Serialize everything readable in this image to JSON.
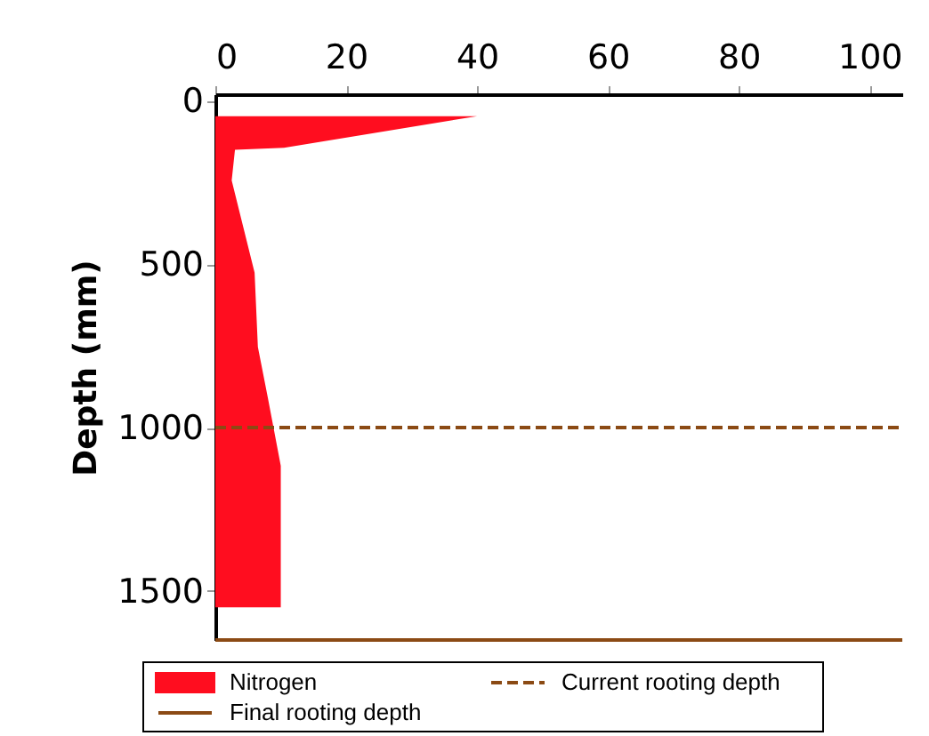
{
  "chart_data": {
    "type": "area",
    "orientation": "horizontal",
    "ylabel": "Depth (mm)",
    "x": [
      47,
      144,
      150,
      244,
      526,
      753,
      906,
      1117,
      1550
    ],
    "series": [
      {
        "name": "Nitrogen",
        "color": "#ff0d1f",
        "values": [
          40,
          10.5,
          3,
          2.5,
          6,
          6.5,
          8,
          10,
          10
        ]
      }
    ],
    "xlim": [
      0,
      105
    ],
    "xticks": [
      0,
      20,
      40,
      60,
      80,
      100
    ],
    "ylim": [
      1650,
      -20
    ],
    "yticks": [
      0,
      500,
      1000,
      1500
    ],
    "ref_lines": [
      {
        "axis": "y",
        "value": 1000,
        "label": "Current rooting depth",
        "color": "#8b4a14",
        "line_style": "dashed"
      },
      {
        "axis": "y",
        "value": 1650,
        "label": "Final rooting depth",
        "color": "#8b4a14",
        "line_style": "solid"
      }
    ],
    "grid": false,
    "legend": "bottom"
  }
}
